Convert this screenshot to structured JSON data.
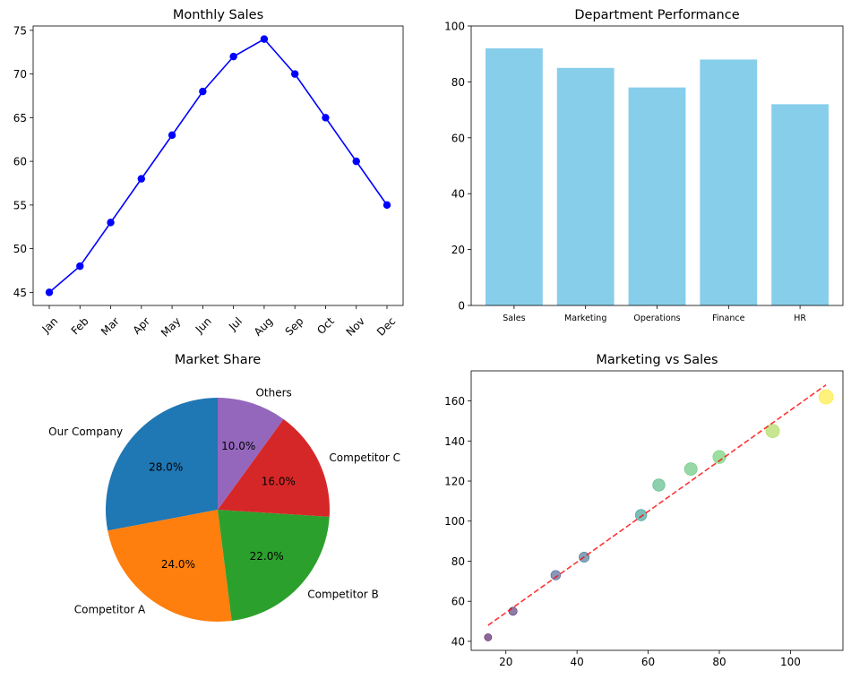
{
  "chart_data": [
    {
      "type": "line",
      "title": "Monthly Sales",
      "categories": [
        "Jan",
        "Feb",
        "Mar",
        "Apr",
        "May",
        "Jun",
        "Jul",
        "Aug",
        "Sep",
        "Oct",
        "Nov",
        "Dec"
      ],
      "values": [
        45,
        48,
        53,
        58,
        63,
        68,
        72,
        74,
        70,
        65,
        60,
        55
      ],
      "ylim": [
        43.5,
        75.5
      ],
      "yticks": [
        45,
        50,
        55,
        60,
        65,
        70,
        75
      ],
      "color": "#0000ff",
      "marker": "circle",
      "grid": false
    },
    {
      "type": "bar",
      "title": "Department Performance",
      "categories": [
        "Sales",
        "Marketing",
        "Operations",
        "Finance",
        "HR"
      ],
      "values": [
        92,
        85,
        78,
        88,
        72
      ],
      "ylim": [
        0,
        100
      ],
      "yticks": [
        0,
        20,
        40,
        60,
        80,
        100
      ],
      "color": "#87ceeb",
      "grid": false
    },
    {
      "type": "pie",
      "title": "Market Share",
      "labels": [
        "Our Company",
        "Competitor A",
        "Competitor B",
        "Competitor C",
        "Others"
      ],
      "values": [
        28,
        24,
        22,
        16,
        10
      ],
      "percent_labels": [
        "28.0%",
        "24.0%",
        "22.0%",
        "16.0%",
        "10.0%"
      ],
      "colors": [
        "#1f77b4",
        "#ff7f0e",
        "#2ca02c",
        "#d62728",
        "#9467bd"
      ],
      "start_angle": 90
    },
    {
      "type": "scatter",
      "title": "Marketing vs Sales",
      "points": [
        {
          "x": 15,
          "y": 42
        },
        {
          "x": 22,
          "y": 55
        },
        {
          "x": 34,
          "y": 73
        },
        {
          "x": 42,
          "y": 82
        },
        {
          "x": 58,
          "y": 103
        },
        {
          "x": 63,
          "y": 118
        },
        {
          "x": 72,
          "y": 126
        },
        {
          "x": 80,
          "y": 132
        },
        {
          "x": 95,
          "y": 145
        },
        {
          "x": 110,
          "y": 162
        }
      ],
      "xlim": [
        10.25,
        114.75
      ],
      "ylim": [
        35.5,
        175
      ],
      "xticks": [
        20,
        40,
        60,
        80,
        100
      ],
      "yticks": [
        40,
        60,
        80,
        100,
        120,
        140,
        160
      ],
      "colormap": "viridis",
      "marker_alpha": 0.6,
      "trendline": {
        "x": [
          15,
          110
        ],
        "y": [
          48,
          168
        ],
        "color": "#ff0000",
        "style": "dashed"
      },
      "grid": false
    }
  ]
}
